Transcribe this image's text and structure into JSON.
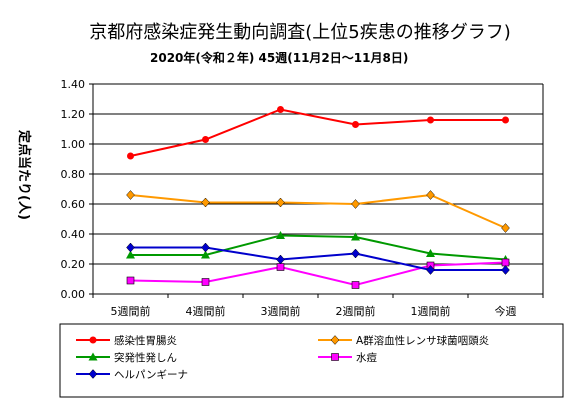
{
  "chart_data": {
    "type": "line",
    "title": "京都府感染症発生動向調査(上位5疾患の推移グラフ)",
    "subtitle": "2020年(令和２年) 45週(11月2日～11月8日)",
    "ylabel": "定点当たり(人)",
    "xlabel": "",
    "categories": [
      "5週間前",
      "4週間前",
      "3週間前",
      "2週間前",
      "1週間前",
      "今週"
    ],
    "yticks": [
      "0.00",
      "0.20",
      "0.40",
      "0.60",
      "0.80",
      "1.00",
      "1.20",
      "1.40"
    ],
    "ylim": [
      0,
      1.4
    ],
    "grid": true,
    "legend_position": "bottom",
    "series": [
      {
        "name": "感染性胃腸炎",
        "color": "#ff0000",
        "marker": "circle",
        "values": [
          0.92,
          1.03,
          1.23,
          1.13,
          1.16,
          1.16
        ]
      },
      {
        "name": "A群溶血性レンサ球菌咽頭炎",
        "color": "#ff9900",
        "marker": "diamond",
        "values": [
          0.66,
          0.61,
          0.61,
          0.6,
          0.66,
          0.44
        ]
      },
      {
        "name": "突発性発しん",
        "color": "#009900",
        "marker": "triangle",
        "values": [
          0.26,
          0.26,
          0.39,
          0.38,
          0.27,
          0.23
        ]
      },
      {
        "name": "水痘",
        "color": "#ff00ff",
        "marker": "square",
        "values": [
          0.09,
          0.08,
          0.18,
          0.06,
          0.19,
          0.21
        ]
      },
      {
        "name": "ヘルパンギーナ",
        "color": "#0000cc",
        "marker": "diamond",
        "values": [
          0.31,
          0.31,
          0.23,
          0.27,
          0.16,
          0.16
        ]
      }
    ]
  }
}
